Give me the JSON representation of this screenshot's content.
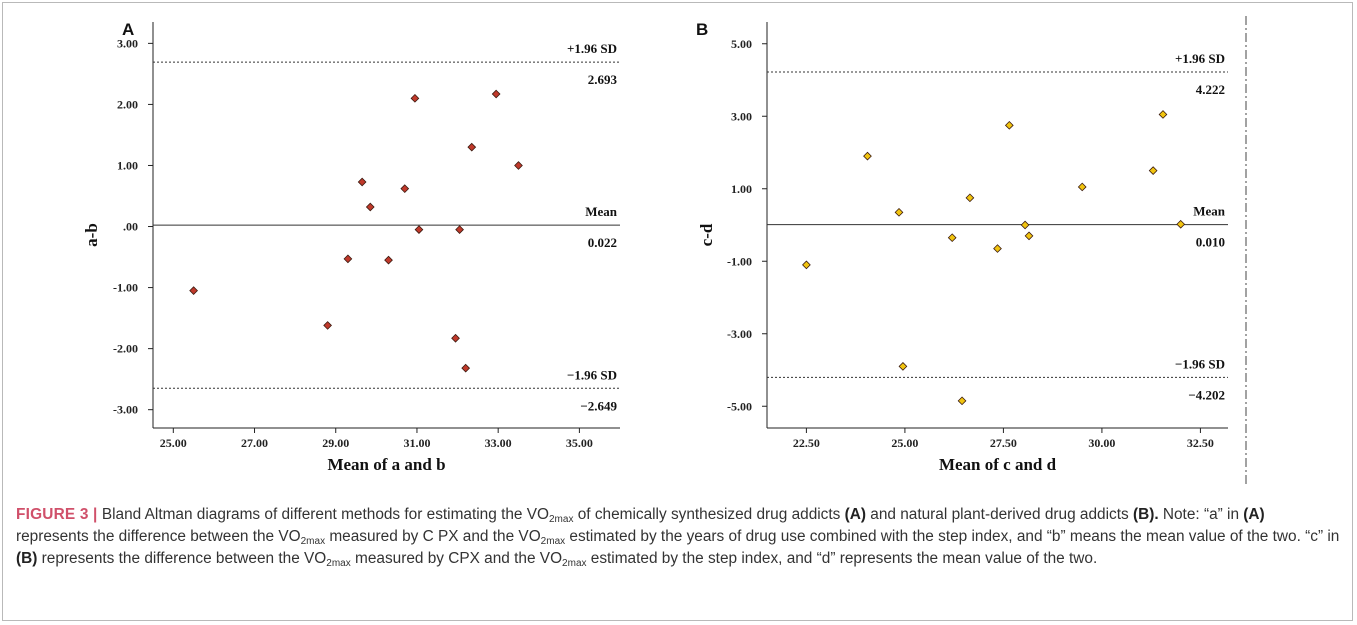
{
  "chart_data": [
    {
      "type": "scatter",
      "panel_label": "A",
      "xlabel": "Mean of a and b",
      "ylabel": "a-b",
      "xlim": [
        24.5,
        36.0
      ],
      "ylim": [
        -3.3,
        3.35
      ],
      "xticks": [
        25,
        27,
        29,
        31,
        33,
        35
      ],
      "xtick_labels": [
        "25.00",
        "27.00",
        "29.00",
        "31.00",
        "33.00",
        "35.00"
      ],
      "yticks": [
        3,
        2,
        1,
        0,
        -1,
        -2,
        -3
      ],
      "ytick_labels": [
        "3.00",
        "2.00",
        "1.00",
        ".00",
        "-1.00",
        "-2.00",
        "-3.00"
      ],
      "marker_color": "#c0392b",
      "reference_lines": [
        {
          "name": "+1.96 SD",
          "value": 2.693,
          "value_label": "2.693",
          "style": "dashed"
        },
        {
          "name": "Mean",
          "value": 0.022,
          "value_label": "0.022",
          "style": "solid"
        },
        {
          "name": "−1.96 SD",
          "value": -2.649,
          "value_label": "−2.649",
          "style": "dashed"
        }
      ],
      "points": [
        {
          "x": 25.5,
          "y": -1.05
        },
        {
          "x": 28.8,
          "y": -1.62
        },
        {
          "x": 29.3,
          "y": -0.53
        },
        {
          "x": 29.65,
          "y": 0.73
        },
        {
          "x": 29.85,
          "y": 0.32
        },
        {
          "x": 30.3,
          "y": -0.55
        },
        {
          "x": 30.7,
          "y": 0.62
        },
        {
          "x": 30.95,
          "y": 2.1
        },
        {
          "x": 31.05,
          "y": -0.05
        },
        {
          "x": 31.95,
          "y": -1.83
        },
        {
          "x": 32.05,
          "y": -0.05
        },
        {
          "x": 32.2,
          "y": -2.32
        },
        {
          "x": 32.35,
          "y": 1.3
        },
        {
          "x": 32.95,
          "y": 2.17
        },
        {
          "x": 33.5,
          "y": 1.0
        }
      ]
    },
    {
      "type": "scatter",
      "panel_label": "B",
      "xlabel": "Mean of c and d",
      "ylabel": "c-d",
      "xlim": [
        21.5,
        33.2
      ],
      "ylim": [
        -5.6,
        5.6
      ],
      "xticks": [
        22.5,
        25,
        27.5,
        30,
        32.5
      ],
      "xtick_labels": [
        "22.50",
        "25.00",
        "27.50",
        "30.00",
        "32.50"
      ],
      "yticks": [
        5,
        3,
        1,
        -1,
        -3,
        -5
      ],
      "ytick_labels": [
        "5.00",
        "3.00",
        "1.00",
        "-1.00",
        "-3.00",
        "-5.00"
      ],
      "marker_color": "#f1c40f",
      "reference_lines": [
        {
          "name": "+1.96 SD",
          "value": 4.222,
          "value_label": "4.222",
          "style": "dashed"
        },
        {
          "name": "Mean",
          "value": 0.01,
          "value_label": "0.010",
          "style": "solid"
        },
        {
          "name": "−1.96 SD",
          "value": -4.202,
          "value_label": "−4.202",
          "style": "dashed"
        }
      ],
      "points": [
        {
          "x": 22.5,
          "y": -1.1
        },
        {
          "x": 24.05,
          "y": 1.9
        },
        {
          "x": 24.85,
          "y": 0.35
        },
        {
          "x": 24.95,
          "y": -3.9
        },
        {
          "x": 26.2,
          "y": -0.35
        },
        {
          "x": 26.45,
          "y": -4.85
        },
        {
          "x": 26.65,
          "y": 0.75
        },
        {
          "x": 27.35,
          "y": -0.65
        },
        {
          "x": 27.65,
          "y": 2.75
        },
        {
          "x": 28.05,
          "y": 0.0
        },
        {
          "x": 28.15,
          "y": -0.3
        },
        {
          "x": 29.5,
          "y": 1.05
        },
        {
          "x": 31.3,
          "y": 1.5
        },
        {
          "x": 31.55,
          "y": 3.05
        },
        {
          "x": 32.0,
          "y": 0.02
        }
      ]
    }
  ],
  "caption": {
    "label": "FIGURE 3 |",
    "t1": " Bland Altman diagrams of different methods for estimating the VO",
    "sub1": "2max",
    "t2": " of chemically synthesized drug addicts ",
    "b1": "(A)",
    "t3": " and natural plant-derived drug addicts ",
    "b2": "(B).",
    "t4": " Note: “a” in ",
    "b3": "(A)",
    "t5": " represents the difference between the VO",
    "sub2": "2max",
    "t6": " measured by C PX and the VO",
    "sub3": "2max",
    "t7": " estimated by the years of drug use combined with the step index, and “b” means the mean value of the two. “c” in ",
    "b4": "(B)",
    "t8": " represents the difference between the VO",
    "sub4": "2max",
    "t9": " measured by CPX and the VO",
    "sub5": "2max",
    "t10": " estimated by the step index, and “d” represents the mean value of the two."
  }
}
